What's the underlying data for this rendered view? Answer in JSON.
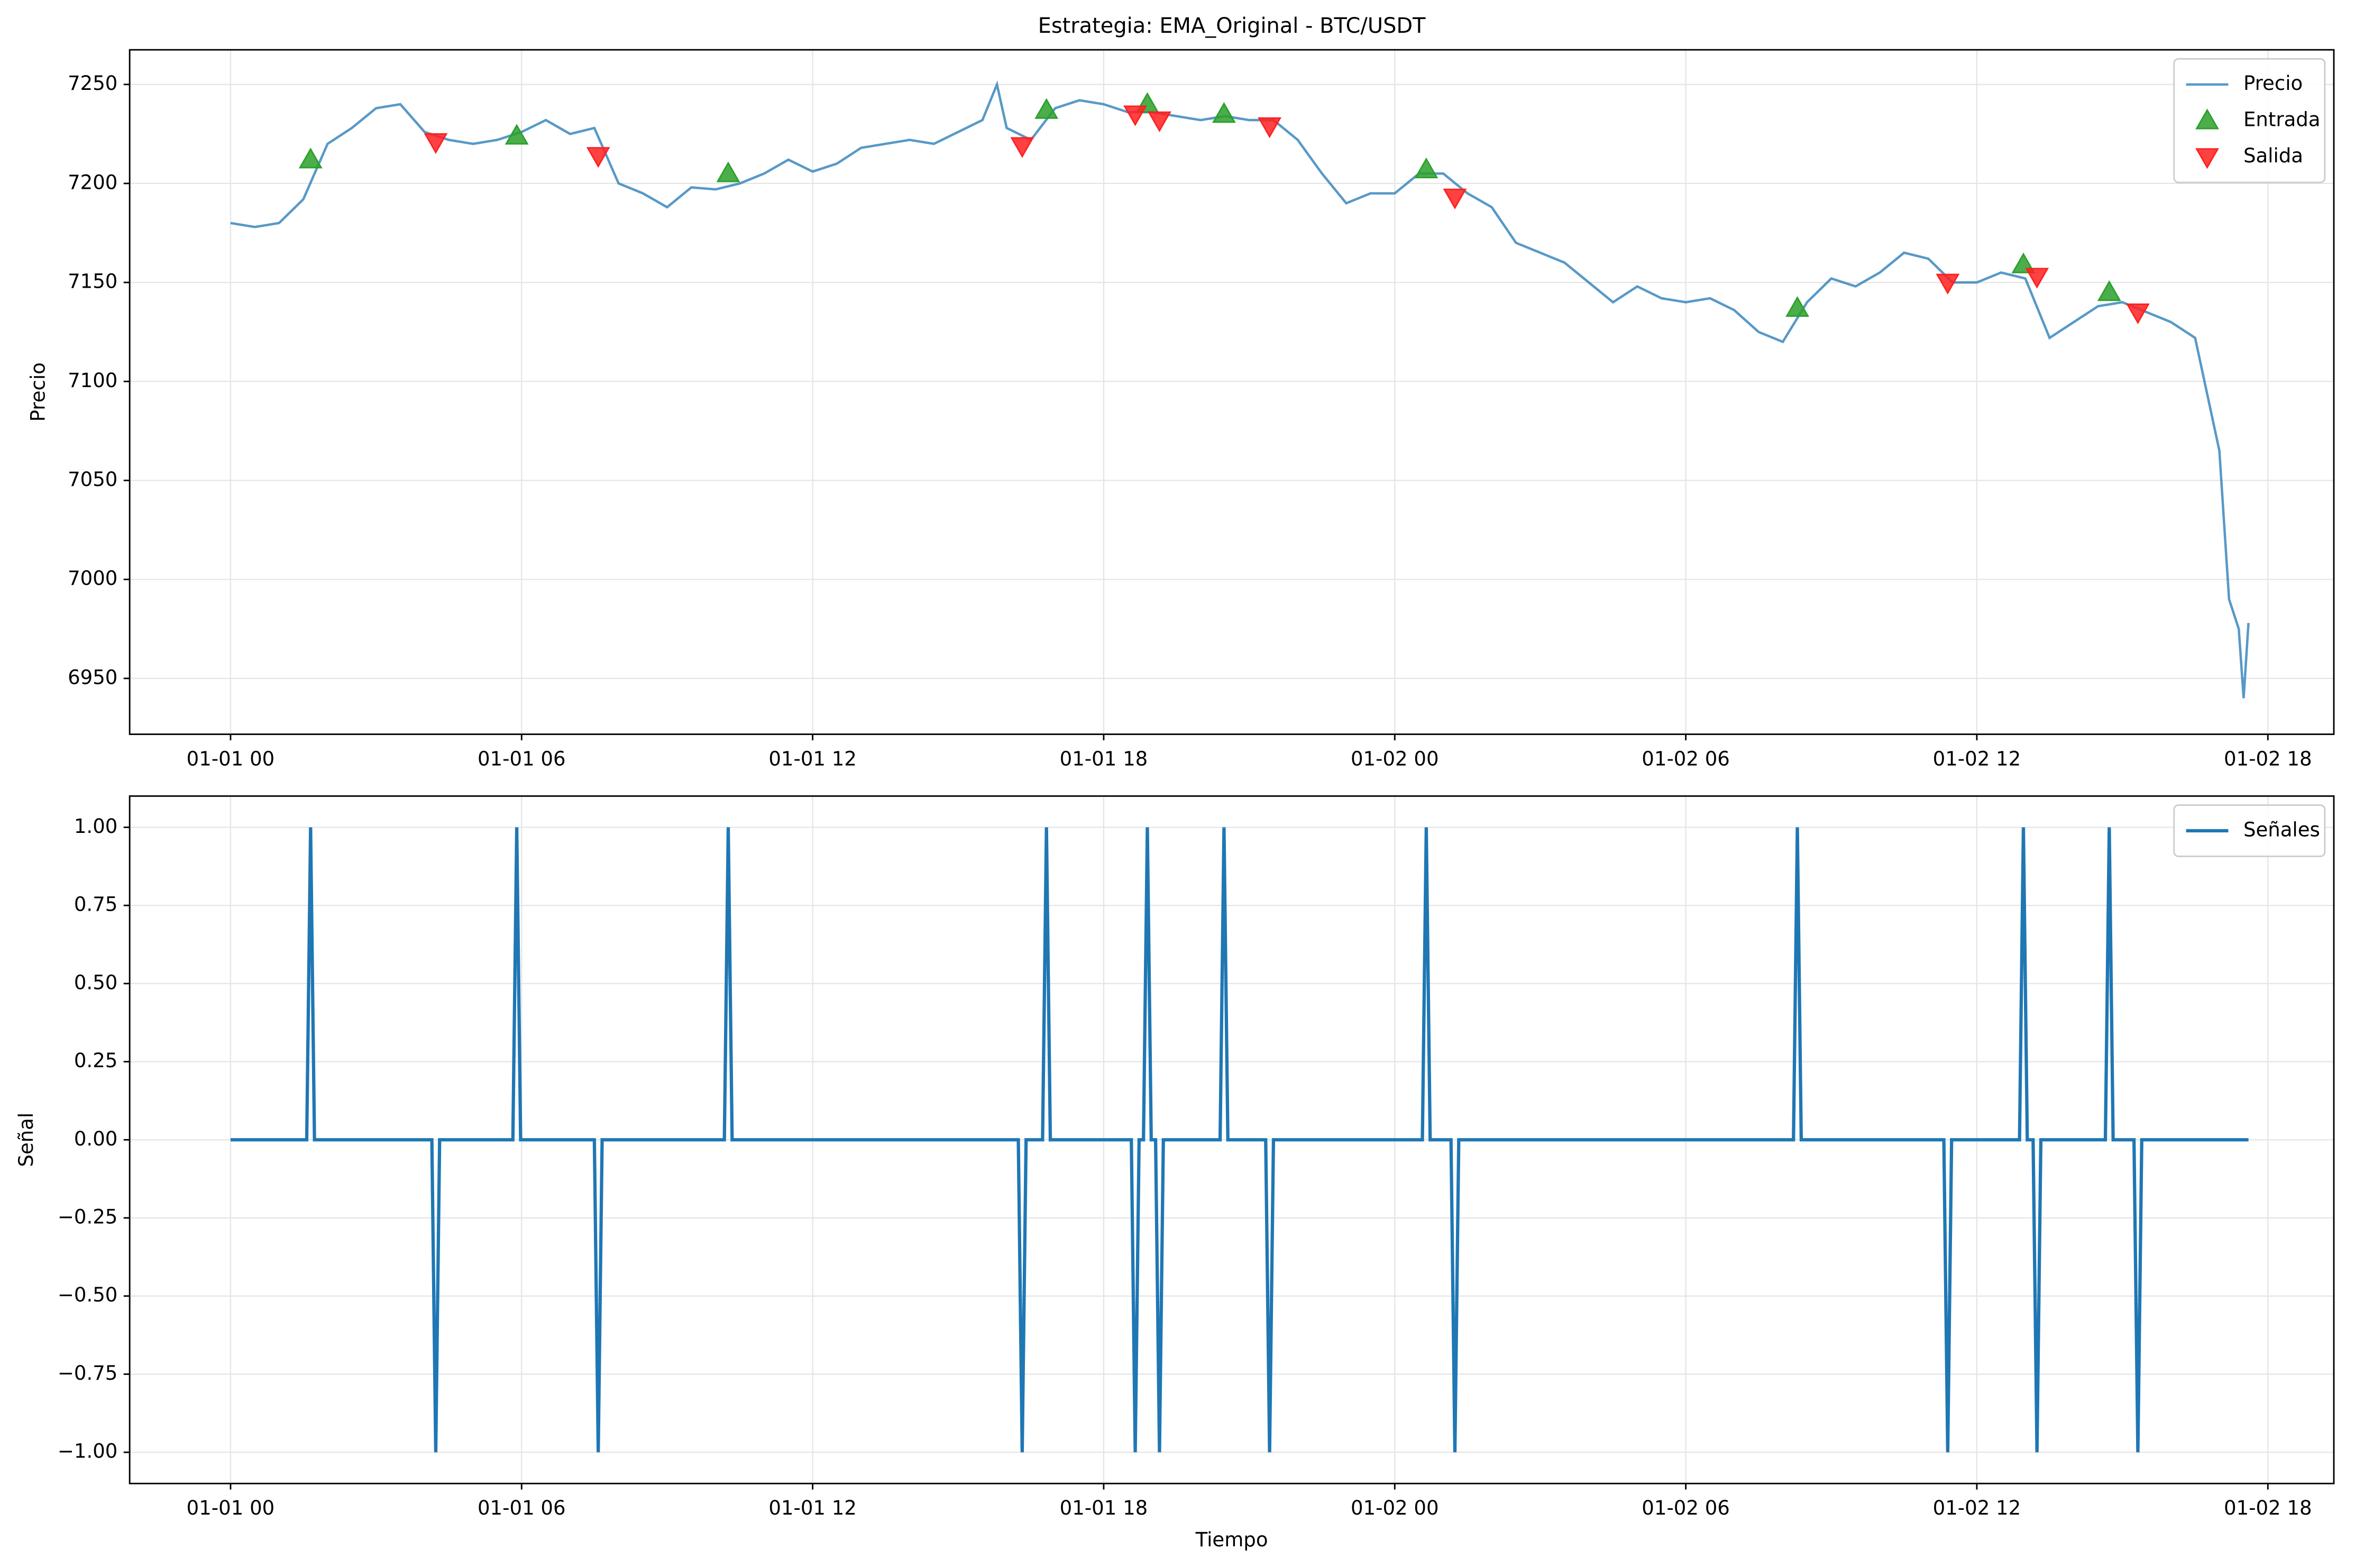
{
  "chart_data": [
    {
      "type": "line",
      "title": "Estrategia: EMA_Original - BTC/USDT",
      "ylabel": "Precio",
      "xlim": [
        -2.08,
        43.36
      ],
      "ylim": [
        6921.8,
        7267.5
      ],
      "xticks": [
        {
          "value": 0,
          "label": "01-01 00"
        },
        {
          "value": 6,
          "label": "01-01 06"
        },
        {
          "value": 12,
          "label": "01-01 12"
        },
        {
          "value": 18,
          "label": "01-01 18"
        },
        {
          "value": 24,
          "label": "01-02 00"
        },
        {
          "value": 30,
          "label": "01-02 06"
        },
        {
          "value": 36,
          "label": "01-02 12"
        },
        {
          "value": 42,
          "label": "01-02 18"
        }
      ],
      "yticks": [
        6950,
        7000,
        7050,
        7100,
        7150,
        7200,
        7250
      ],
      "grid": true,
      "legend": "upper right",
      "series": [
        {
          "name": "Precio",
          "color": "#1f77b4",
          "marker": "line",
          "x": [
            0,
            0.5,
            1,
            1.5,
            2,
            2.5,
            3,
            3.5,
            4,
            4.5,
            5,
            5.5,
            6,
            6.5,
            7,
            7.5,
            8,
            8.5,
            9,
            9.5,
            10,
            10.5,
            11,
            11.5,
            12,
            12.5,
            13,
            13.5,
            14,
            14.5,
            15,
            15.5,
            15.8,
            16,
            16.5,
            17,
            17.5,
            18,
            18.5,
            19,
            19.5,
            20,
            20.5,
            21,
            21.5,
            22,
            22.5,
            23,
            23.5,
            24,
            24.5,
            25,
            25.5,
            26,
            26.5,
            27,
            27.5,
            28,
            28.5,
            29,
            29.5,
            30,
            30.5,
            31,
            31.5,
            32,
            32.5,
            33,
            33.5,
            34,
            34.5,
            35,
            35.5,
            36,
            36.5,
            37,
            37.5,
            38,
            38.5,
            39,
            39.5,
            40,
            40.5,
            41,
            41.2,
            41.4,
            41.5,
            41.6
          ],
          "values": [
            7180,
            7178,
            7180,
            7192,
            7220,
            7228,
            7238,
            7240,
            7226,
            7222,
            7220,
            7222,
            7226,
            7232,
            7225,
            7228,
            7200,
            7195,
            7188,
            7198,
            7197,
            7200,
            7205,
            7212,
            7206,
            7210,
            7218,
            7220,
            7222,
            7220,
            7226,
            7232,
            7250,
            7228,
            7222,
            7238,
            7242,
            7240,
            7236,
            7236,
            7234,
            7232,
            7234,
            7232,
            7232,
            7222,
            7205,
            7190,
            7195,
            7195,
            7205,
            7205,
            7195,
            7188,
            7170,
            7165,
            7160,
            7150,
            7140,
            7148,
            7142,
            7140,
            7142,
            7136,
            7125,
            7120,
            7140,
            7152,
            7148,
            7155,
            7165,
            7162,
            7150,
            7150,
            7155,
            7152,
            7122,
            7130,
            7138,
            7140,
            7135,
            7130,
            7122,
            7065,
            6990,
            6975,
            6940,
            6978
          ]
        },
        {
          "name": "Entrada",
          "color": "#2ca02c",
          "marker": "triangle-up",
          "x": [
            1.65,
            5.9,
            10.26,
            16.82,
            18.9,
            20.48,
            24.65,
            32.3,
            36.96,
            38.73
          ],
          "values": [
            7212,
            7224,
            7205,
            7237,
            7240,
            7235,
            7207,
            7137,
            7159,
            7145
          ]
        },
        {
          "name": "Salida",
          "color": "#ff2020",
          "marker": "triangle-down",
          "x": [
            4.23,
            7.58,
            16.32,
            18.65,
            19.15,
            21.42,
            25.24,
            35.4,
            37.24,
            39.32
          ],
          "values": [
            7221,
            7214,
            7219,
            7235,
            7232,
            7229,
            7193,
            7150,
            7153,
            7135
          ]
        }
      ]
    },
    {
      "type": "line",
      "xlabel": "Tiempo",
      "ylabel": "Señal",
      "xlim": [
        -2.08,
        43.36
      ],
      "ylim": [
        -1.1,
        1.1
      ],
      "xticks": [
        {
          "value": 0,
          "label": "01-01 00"
        },
        {
          "value": 6,
          "label": "01-01 06"
        },
        {
          "value": 12,
          "label": "01-01 12"
        },
        {
          "value": 18,
          "label": "01-01 18"
        },
        {
          "value": 24,
          "label": "01-02 00"
        },
        {
          "value": 30,
          "label": "01-02 06"
        },
        {
          "value": 36,
          "label": "01-02 12"
        },
        {
          "value": 42,
          "label": "01-02 18"
        }
      ],
      "yticks": [
        {
          "value": -1,
          "label": "−1.00"
        },
        {
          "value": -0.75,
          "label": "−0.75"
        },
        {
          "value": -0.5,
          "label": "−0.50"
        },
        {
          "value": -0.25,
          "label": "−0.25"
        },
        {
          "value": 0,
          "label": "0.00"
        },
        {
          "value": 0.25,
          "label": "0.25"
        },
        {
          "value": 0.5,
          "label": "0.50"
        },
        {
          "value": 0.75,
          "label": "0.75"
        },
        {
          "value": 1,
          "label": "1.00"
        }
      ],
      "grid": true,
      "legend": "upper right",
      "series": [
        {
          "name": "Señales",
          "color": "#1f77b4",
          "marker": "line",
          "x": [
            0,
            1.57,
            1.65,
            1.73,
            4.15,
            4.23,
            4.31,
            5.82,
            5.9,
            5.98,
            7.5,
            7.58,
            7.66,
            10.18,
            10.26,
            10.34,
            16.24,
            16.32,
            16.4,
            16.74,
            16.82,
            16.9,
            18.57,
            18.65,
            18.73,
            18.82,
            18.9,
            18.98,
            19.07,
            19.15,
            19.23,
            20.4,
            20.48,
            20.56,
            21.34,
            21.42,
            21.5,
            24.57,
            24.65,
            24.73,
            25.16,
            25.24,
            25.32,
            32.22,
            32.3,
            32.38,
            35.32,
            35.4,
            35.48,
            36.88,
            36.96,
            37.04,
            37.16,
            37.24,
            37.32,
            38.65,
            38.73,
            38.81,
            39.24,
            39.32,
            39.4,
            41.6
          ],
          "values": [
            0,
            0,
            1,
            0,
            0,
            -1,
            0,
            0,
            1,
            0,
            0,
            -1,
            0,
            0,
            1,
            0,
            0,
            -1,
            0,
            0,
            1,
            0,
            0,
            -1,
            0,
            0,
            1,
            0,
            0,
            -1,
            0,
            0,
            1,
            0,
            0,
            -1,
            0,
            0,
            1,
            0,
            0,
            -1,
            0,
            0,
            1,
            0,
            0,
            -1,
            0,
            0,
            1,
            0,
            0,
            -1,
            0,
            0,
            1,
            0,
            0,
            -1,
            0,
            0
          ]
        }
      ]
    }
  ]
}
